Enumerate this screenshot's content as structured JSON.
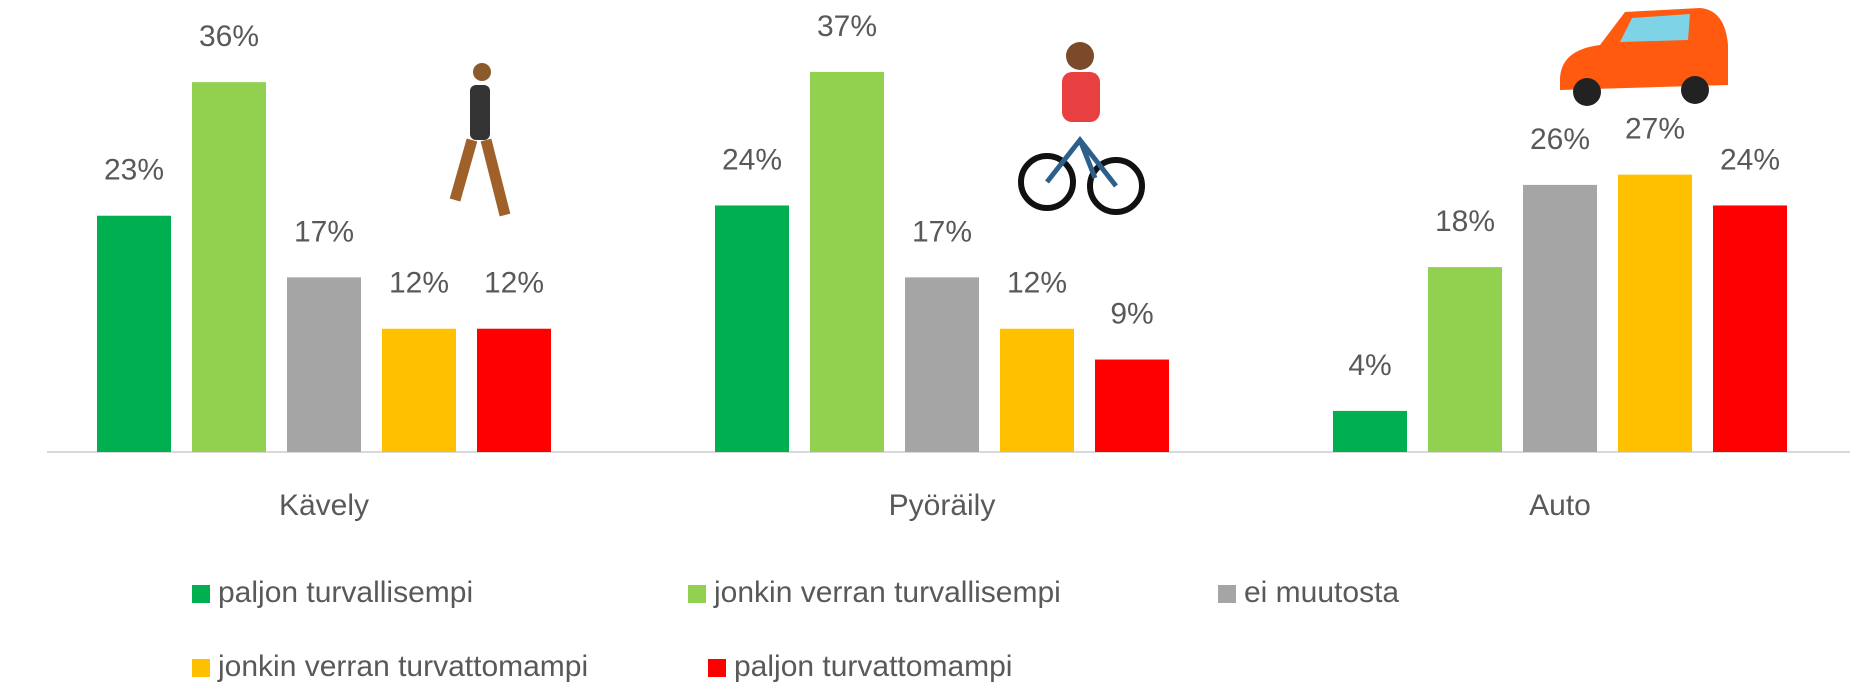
{
  "chart_data": {
    "type": "bar",
    "categories": [
      "Kävely",
      "Pyöräily",
      "Auto"
    ],
    "series": [
      {
        "name": "paljon turvallisempi",
        "color": "#00b050",
        "values": [
          23,
          24,
          4
        ],
        "value_labels": [
          "23%",
          "24%",
          "4%"
        ]
      },
      {
        "name": "jonkin verran turvallisempi",
        "color": "#92d050",
        "values": [
          36,
          37,
          18
        ],
        "value_labels": [
          "36%",
          "37%",
          "18%"
        ]
      },
      {
        "name": "ei muutosta",
        "color": "#a5a5a5",
        "values": [
          17,
          17,
          26
        ],
        "value_labels": [
          "17%",
          "17%",
          "26%"
        ]
      },
      {
        "name": "jonkin verran turvattomampi",
        "color": "#ffc000",
        "values": [
          12,
          12,
          27
        ],
        "value_labels": [
          "12%",
          "12%",
          "27%"
        ]
      },
      {
        "name": "paljon turvattomampi",
        "color": "#ff0000",
        "values": [
          12,
          9,
          24
        ],
        "value_labels": [
          "12%",
          "9%",
          "24%"
        ]
      }
    ],
    "ylim": [
      0,
      44
    ]
  }
}
